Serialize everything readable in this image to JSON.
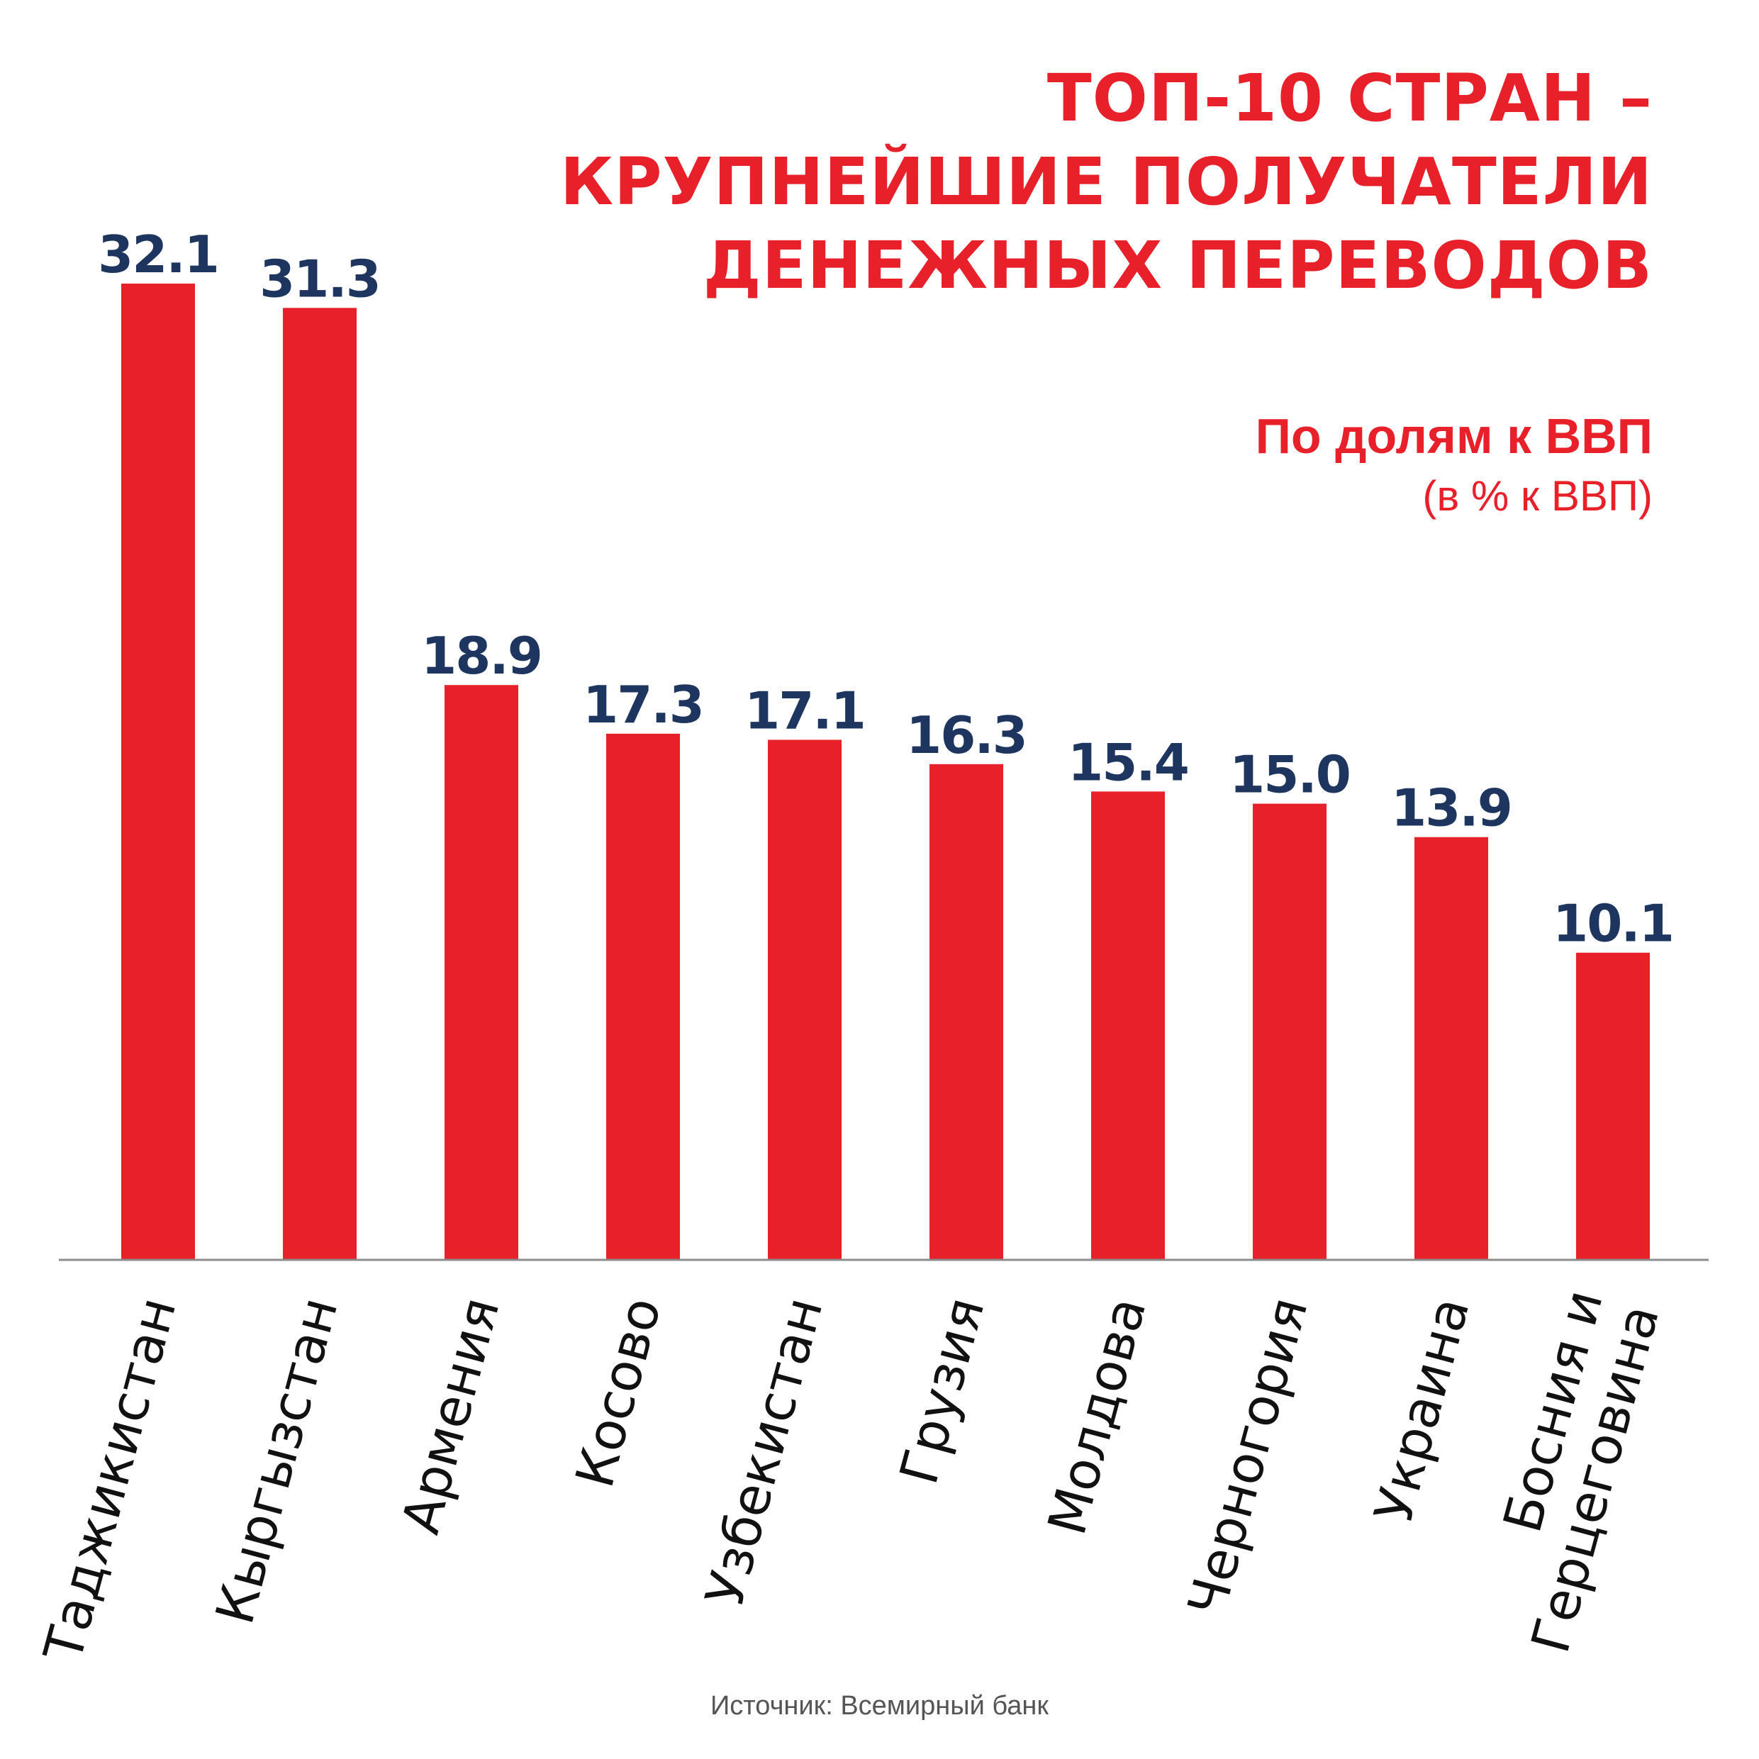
{
  "chart_data": {
    "type": "bar",
    "title_lines": [
      "ТОП-10 СТРАН –",
      "КРУПНЕЙШИЕ ПОЛУЧАТЕЛИ",
      "ДЕНЕЖНЫХ ПЕРЕВОДОВ"
    ],
    "subtitle": "По долям к ВВП",
    "unit": "(в % к ВВП)",
    "categories": [
      [
        "Таджикистан"
      ],
      [
        "Кыргызстан"
      ],
      [
        "Армения"
      ],
      [
        "Косово"
      ],
      [
        "Узбекистан"
      ],
      [
        "Грузия"
      ],
      [
        "Молдова"
      ],
      [
        "Черногория"
      ],
      [
        "Украина"
      ],
      [
        "Босния и",
        "Герцеговина"
      ]
    ],
    "values": [
      32.1,
      31.3,
      18.9,
      17.3,
      17.1,
      16.3,
      15.4,
      15.0,
      13.9,
      10.1
    ],
    "value_labels": [
      "32.1",
      "31.3",
      "18.9",
      "17.3",
      "17.1",
      "16.3",
      "15.4",
      "15.0",
      "13.9",
      "10.1"
    ],
    "ylim": [
      0,
      32.1
    ],
    "grid": false,
    "bar_color": "#e8202a",
    "label_color": "#1e3560",
    "axis_color": "#8c8c8c",
    "category_label_color": "#111111"
  },
  "source": "Источник: Всемирный банк"
}
